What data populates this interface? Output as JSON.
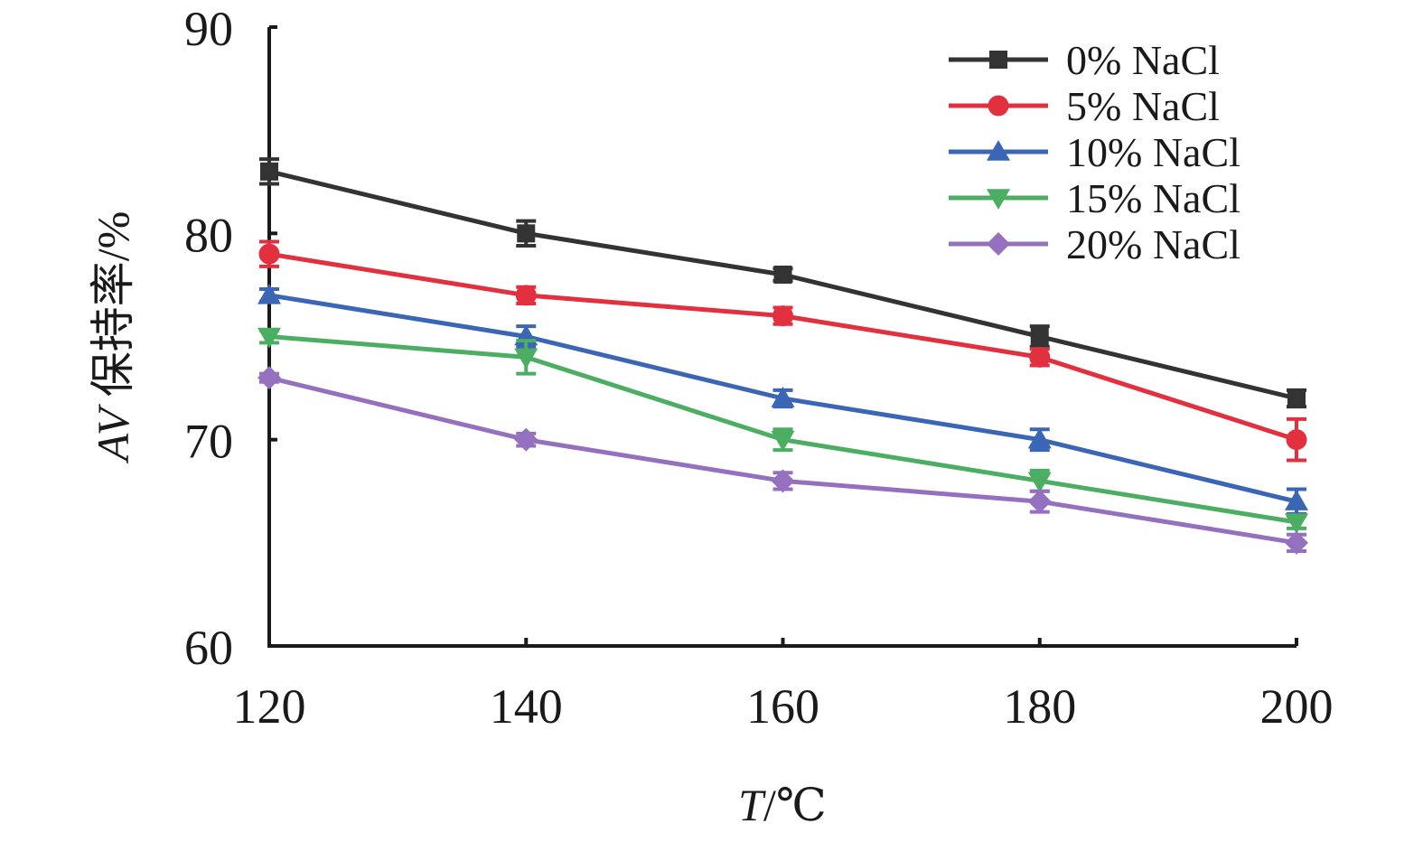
{
  "chart_data": {
    "type": "line",
    "x": [
      120,
      140,
      160,
      180,
      200
    ],
    "xlabel": {
      "italic": "T",
      "rest": "/℃"
    },
    "ylabel": {
      "italic": "AV",
      "rest": " 保持率/%"
    },
    "xlim": [
      120,
      200
    ],
    "ylim": [
      60,
      90
    ],
    "xticks": [
      120,
      140,
      160,
      180,
      200
    ],
    "yticks": [
      60,
      70,
      80,
      90
    ],
    "grid": false,
    "legend_position": "top-right",
    "series": [
      {
        "name": "0% NaCl",
        "color": "#333333",
        "marker": "square",
        "values": [
          83,
          80,
          78,
          75,
          72
        ],
        "errors": [
          0.6,
          0.6,
          0.3,
          0.5,
          0.4
        ]
      },
      {
        "name": "5% NaCl",
        "color": "#e2303f",
        "marker": "circle",
        "values": [
          79,
          77,
          76,
          74,
          70
        ],
        "errors": [
          0.6,
          0.4,
          0.4,
          0.4,
          1.0
        ]
      },
      {
        "name": "10% NaCl",
        "color": "#3a66b5",
        "marker": "triangle-up",
        "values": [
          77,
          75,
          72,
          70,
          67
        ],
        "errors": [
          0.3,
          0.5,
          0.4,
          0.5,
          0.6
        ]
      },
      {
        "name": "15% NaCl",
        "color": "#4cae63",
        "marker": "triangle-down",
        "values": [
          75,
          74,
          70,
          68,
          66
        ],
        "errors": [
          0.3,
          0.8,
          0.5,
          0.5,
          0.3
        ]
      },
      {
        "name": "20% NaCl",
        "color": "#9470bf",
        "marker": "diamond",
        "values": [
          73,
          70,
          68,
          67,
          65
        ],
        "errors": [
          0.2,
          0.3,
          0.4,
          0.5,
          0.4
        ]
      }
    ]
  }
}
